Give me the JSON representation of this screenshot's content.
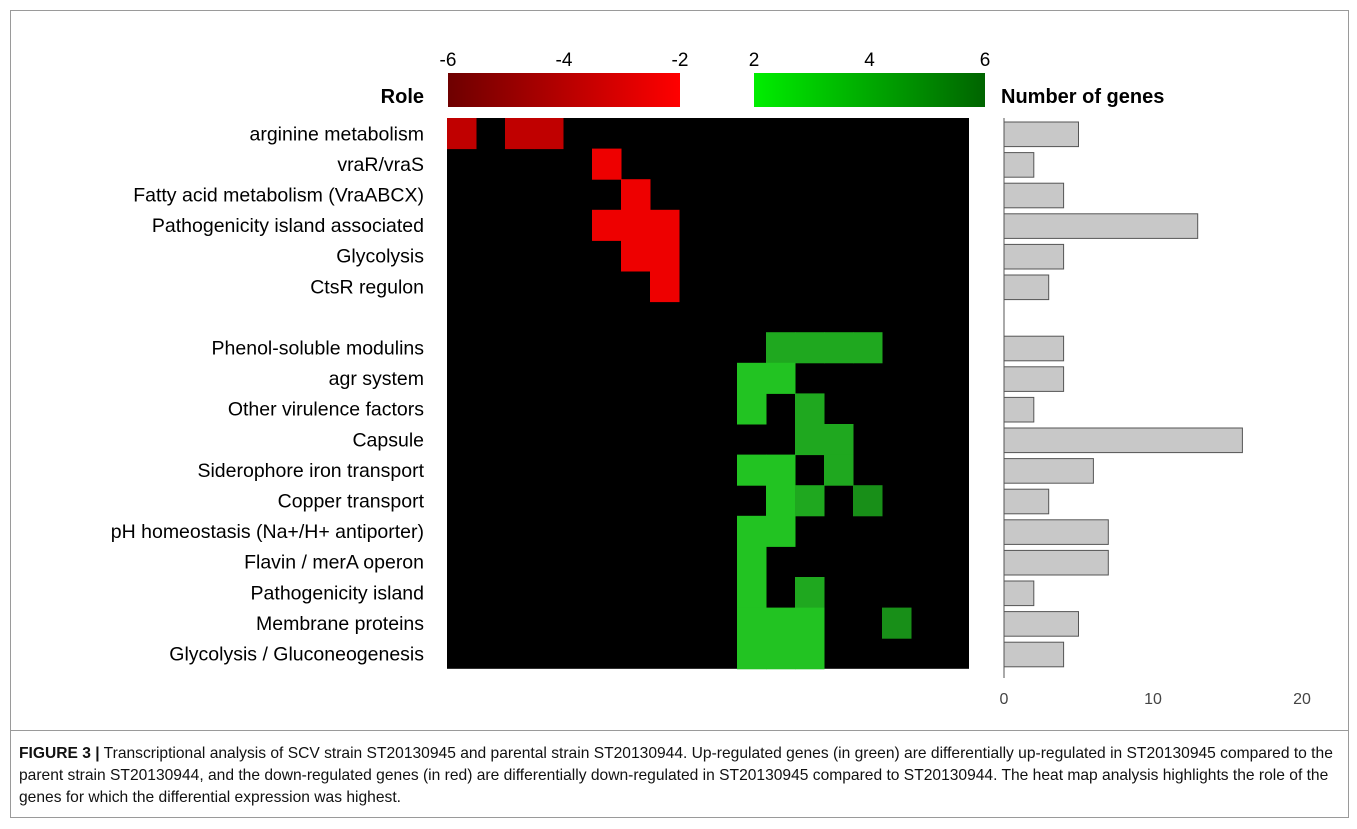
{
  "chart_data": [
    {
      "type": "heatmap",
      "role_header": "Role",
      "colorbar_down": {
        "ticks": [
          "-6",
          "-4",
          "-2"
        ],
        "range": [
          -6,
          -2
        ],
        "colors": [
          "#6e0000",
          "#ff0000"
        ]
      },
      "colorbar_up": {
        "ticks": [
          "2",
          "4",
          "6"
        ],
        "range": [
          2,
          6
        ],
        "colors": [
          "#00ee00",
          "#006400"
        ]
      },
      "rows": [
        "arginine metabolism",
        "vraR/vraS",
        "Fatty acid metabolism (VraABCX)",
        "Pathogenicity island associated",
        "Glycolysis",
        "CtsR regulon",
        "",
        "Phenol-soluble modulins",
        "agr system",
        "Other virulence factors",
        "Capsule",
        "Siderophore iron transport",
        "Copper transport",
        "pH homeostasis (Na+/H+ antiporter)",
        "Flavin / merA operon",
        "Pathogenicity island",
        "Membrane proteins",
        "Glycolysis / Gluconeogenesis"
      ],
      "n_columns": 18,
      "cells": [
        [
          0,
          0,
          "#c00000"
        ],
        [
          0,
          2,
          "#c00000"
        ],
        [
          0,
          3,
          "#c00000"
        ],
        [
          1,
          5,
          "#ee0000"
        ],
        [
          2,
          6,
          "#ee0000"
        ],
        [
          3,
          5,
          "#ee0000"
        ],
        [
          3,
          6,
          "#ee0000"
        ],
        [
          3,
          7,
          "#ee0000"
        ],
        [
          4,
          6,
          "#ee0000"
        ],
        [
          4,
          7,
          "#ee0000"
        ],
        [
          5,
          7,
          "#ee0000"
        ],
        [
          7,
          11,
          "#1fa81f"
        ],
        [
          7,
          12,
          "#1fa81f"
        ],
        [
          7,
          13,
          "#1fa81f"
        ],
        [
          7,
          14,
          "#1fa81f"
        ],
        [
          8,
          10,
          "#22c322"
        ],
        [
          8,
          11,
          "#22c322"
        ],
        [
          9,
          10,
          "#22c322"
        ],
        [
          9,
          12,
          "#1fa81f"
        ],
        [
          10,
          12,
          "#1fa81f"
        ],
        [
          10,
          13,
          "#1fa81f"
        ],
        [
          11,
          10,
          "#22c322"
        ],
        [
          11,
          11,
          "#22c322"
        ],
        [
          11,
          13,
          "#1fa81f"
        ],
        [
          12,
          11,
          "#22c322"
        ],
        [
          12,
          12,
          "#1fa81f"
        ],
        [
          12,
          14,
          "#188f18"
        ],
        [
          13,
          10,
          "#22c322"
        ],
        [
          13,
          11,
          "#22c322"
        ],
        [
          14,
          10,
          "#22c322"
        ],
        [
          15,
          10,
          "#22c322"
        ],
        [
          15,
          12,
          "#1fa81f"
        ],
        [
          16,
          10,
          "#22c322"
        ],
        [
          16,
          11,
          "#22c322"
        ],
        [
          16,
          12,
          "#22c322"
        ],
        [
          16,
          15,
          "#188f18"
        ],
        [
          17,
          10,
          "#22c322"
        ],
        [
          17,
          11,
          "#22c322"
        ],
        [
          17,
          12,
          "#22c322"
        ]
      ]
    },
    {
      "type": "bar",
      "orientation": "horizontal",
      "title": "Number of genes",
      "categories": [
        "arginine metabolism",
        "vraR/vraS",
        "Fatty acid metabolism (VraABCX)",
        "Pathogenicity island associated",
        "Glycolysis",
        "CtsR regulon",
        "Phenol-soluble modulins",
        "agr system",
        "Other virulence factors",
        "Capsule",
        "Siderophore iron transport",
        "Copper transport",
        "pH homeostasis (Na+/H+ antiporter)",
        "Flavin / merA operon",
        "Pathogenicity island",
        "Membrane proteins",
        "Glycolysis / Gluconeogenesis"
      ],
      "values": [
        5,
        2,
        4,
        13,
        4,
        3,
        4,
        4,
        2,
        16,
        6,
        3,
        7,
        7,
        2,
        5,
        4
      ],
      "xlim": [
        0,
        20
      ],
      "xticks": [
        "0",
        "10",
        "20"
      ],
      "bar_color": "#c8c8c8"
    }
  ],
  "caption": {
    "label": "FIGURE 3 |",
    "text": " Transcriptional analysis of SCV strain ST20130945 and parental strain ST20130944. Up-regulated genes (in green) are differentially up-regulated in ST20130945 compared to the parent strain ST20130944, and the down-regulated genes (in red) are differentially down-regulated in ST20130945 compared to ST20130944. The heat map analysis highlights the role of the genes for which the differential expression was highest."
  }
}
